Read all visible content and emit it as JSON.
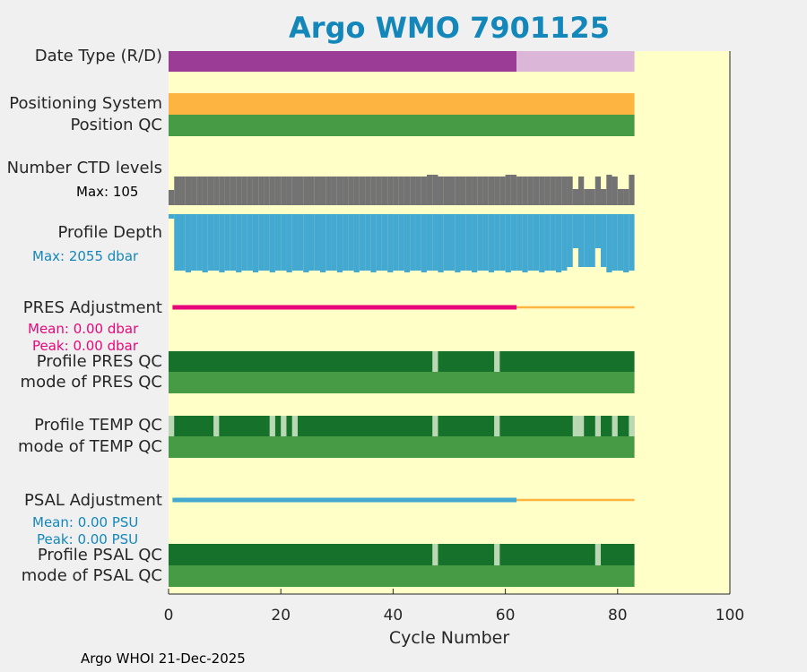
{
  "title": "Argo WMO 7901125",
  "footer": "Argo WHOI 21-Dec-2025",
  "labels": {
    "date_type": "Date Type (R/D)",
    "positioning_system": "Positioning System",
    "position_qc": "Position QC",
    "number_ctd_levels": "Number CTD levels",
    "ctd_max": "Max: 105",
    "profile_depth": "Profile Depth",
    "depth_max": "Max: 2055 dbar",
    "pres_adjustment": "PRES Adjustment",
    "pres_mean": "Mean: 0.00 dbar",
    "pres_peak": "Peak: 0.00 dbar",
    "profile_pres_qc": "Profile PRES QC",
    "mode_pres_qc": "mode of PRES QC",
    "profile_temp_qc": "Profile TEMP QC",
    "mode_temp_qc": "mode of TEMP QC",
    "psal_adjustment": "PSAL Adjustment",
    "psal_mean": "Mean: 0.00 PSU",
    "psal_peak": "Peak: 0.00 PSU",
    "profile_psal_qc": "Profile PSAL QC",
    "mode_psal_qc": "mode of PSAL QC"
  },
  "chart_data": {
    "type": "bar",
    "title": "Argo WMO 7901125",
    "xlabel": "Cycle Number",
    "xlim": [
      0,
      100
    ],
    "xticks": [
      0,
      20,
      40,
      60,
      80,
      100
    ],
    "n_cycles": 83,
    "date_type": {
      "realtime_until": 62,
      "delayed_until": 83
    },
    "positioning_system": {
      "from": 0,
      "to": 83
    },
    "position_qc": {
      "from": 0,
      "to": 83
    },
    "ctd_levels": {
      "max": 105,
      "low_cycles": [
        72,
        74,
        75,
        77,
        80,
        81
      ],
      "high_cycles": [
        46,
        47,
        60,
        61,
        78,
        82
      ]
    },
    "profile_depth": {
      "max_dbar": 2055,
      "shallow_cycles": [
        71,
        72,
        73,
        74,
        75,
        76,
        77
      ],
      "gap_cycles": [
        72,
        76
      ]
    },
    "pres_adjustment": {
      "mean": 0.0,
      "peak": 0.0,
      "unit": "dbar",
      "delayed_until": 62,
      "realtime_until": 83
    },
    "profile_pres_qc_flagged_cycles": [
      47,
      58
    ],
    "profile_temp_qc_flagged_cycles": [
      0,
      8,
      18,
      20,
      22,
      47,
      58,
      72,
      73,
      76,
      79,
      82
    ],
    "psal_adjustment": {
      "mean": 0.0,
      "peak": 0.0,
      "unit": "PSU",
      "delayed_until": 62,
      "realtime_until": 83
    },
    "profile_psal_qc_flagged_cycles": [
      47,
      58,
      76
    ],
    "colors": {
      "plot_bg": "#ffffc8",
      "realtime": "#9b3d96",
      "delayed": "#dcb6d8",
      "positioning": "#fdb441",
      "qc_good": "#479b44",
      "profile_qc_good": "#16722a",
      "qc_flagged": "#b9d8b3",
      "ctd": "#737373",
      "depth": "#43a9d0",
      "pres_adj": "#e8077a",
      "psal_adj": "#43a9d0",
      "adj_realtime": "#fdb441",
      "title": "#1487ba"
    }
  }
}
